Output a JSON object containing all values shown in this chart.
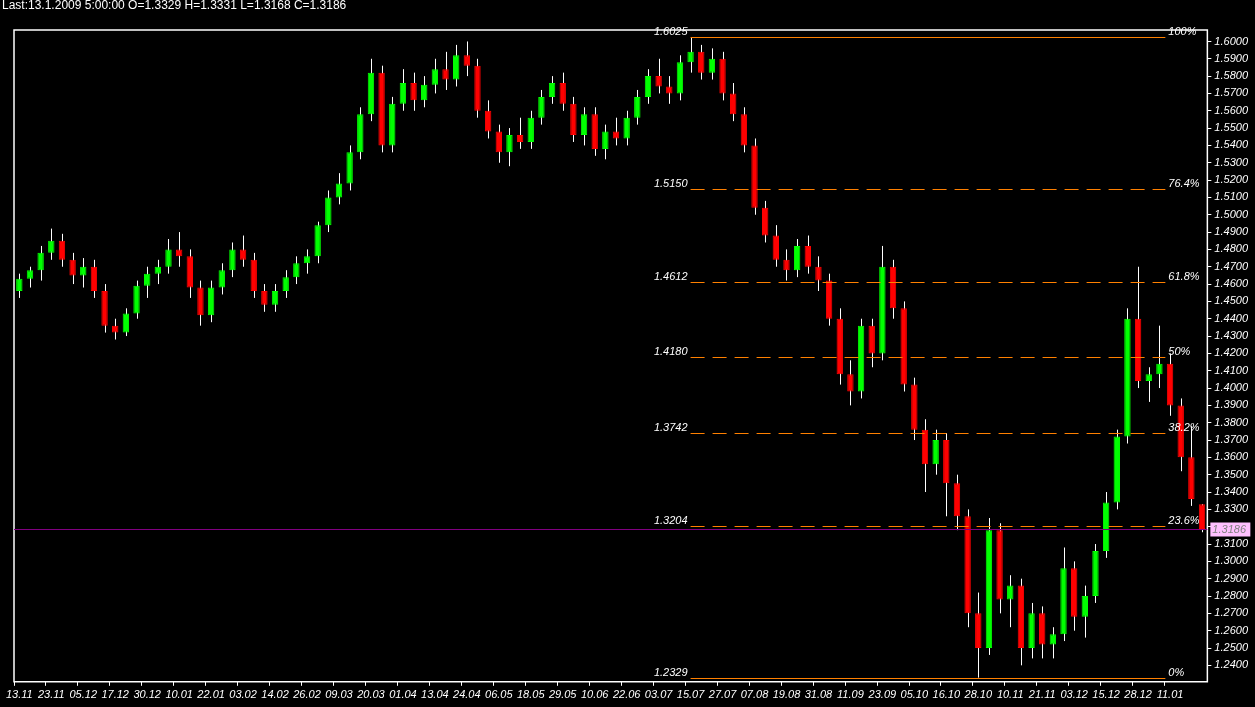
{
  "chart_data": {
    "type": "candlestick",
    "title": "Last:13.1.2009 5:00:00 O=1.3329 H=1.3331 L=1.3168 C=1.3186",
    "categories": [
      "13.11",
      null,
      null,
      "23.11",
      null,
      null,
      "05.12",
      null,
      null,
      "17.12",
      null,
      null,
      "30.12",
      null,
      null,
      "10.01",
      null,
      null,
      "22.01",
      null,
      null,
      "03.02",
      null,
      null,
      "14.02",
      null,
      null,
      "26.02",
      null,
      null,
      "09.03",
      null,
      null,
      "20.03",
      null,
      null,
      "01.04",
      null,
      null,
      "13.04",
      null,
      null,
      "24.04",
      null,
      null,
      "06.05",
      null,
      null,
      "18.05",
      null,
      null,
      "29.05",
      null,
      null,
      "10.06",
      null,
      null,
      "22.06",
      null,
      null,
      "03.07",
      null,
      null,
      "15.07",
      null,
      null,
      "27.07",
      null,
      null,
      "07.08",
      null,
      null,
      "19.08",
      null,
      null,
      "31.08",
      null,
      null,
      "11.09",
      null,
      null,
      "23.09",
      null,
      null,
      "05.10",
      null,
      null,
      "16.10",
      null,
      null,
      "28.10",
      null,
      null,
      "10.11",
      null,
      null,
      "21.11",
      null,
      null,
      "03.12",
      null,
      null,
      "15.12",
      null,
      null,
      "28.12",
      null,
      null,
      "11.01",
      null,
      null,
      null
    ],
    "ohlc": [
      [
        1.456,
        1.466,
        1.452,
        1.463
      ],
      [
        1.463,
        1.47,
        1.458,
        1.468
      ],
      [
        1.468,
        1.482,
        1.462,
        1.478
      ],
      [
        1.478,
        1.492,
        1.474,
        1.485
      ],
      [
        1.485,
        1.489,
        1.47,
        1.474
      ],
      [
        1.474,
        1.478,
        1.46,
        1.465
      ],
      [
        1.465,
        1.475,
        1.458,
        1.47
      ],
      [
        1.47,
        1.474,
        1.452,
        1.456
      ],
      [
        1.456,
        1.46,
        1.432,
        1.436
      ],
      [
        1.436,
        1.44,
        1.428,
        1.432
      ],
      [
        1.432,
        1.446,
        1.43,
        1.443
      ],
      [
        1.443,
        1.462,
        1.44,
        1.459
      ],
      [
        1.459,
        1.47,
        1.452,
        1.466
      ],
      [
        1.466,
        1.474,
        1.46,
        1.47
      ],
      [
        1.47,
        1.486,
        1.466,
        1.48
      ],
      [
        1.48,
        1.49,
        1.47,
        1.476
      ],
      [
        1.476,
        1.48,
        1.452,
        1.458
      ],
      [
        1.458,
        1.462,
        1.436,
        1.442
      ],
      [
        1.442,
        1.462,
        1.438,
        1.458
      ],
      [
        1.458,
        1.472,
        1.454,
        1.468
      ],
      [
        1.468,
        1.484,
        1.464,
        1.48
      ],
      [
        1.48,
        1.488,
        1.47,
        1.474
      ],
      [
        1.474,
        1.478,
        1.452,
        1.456
      ],
      [
        1.456,
        1.46,
        1.444,
        1.448
      ],
      [
        1.448,
        1.46,
        1.444,
        1.456
      ],
      [
        1.456,
        1.468,
        1.452,
        1.464
      ],
      [
        1.464,
        1.476,
        1.46,
        1.472
      ],
      [
        1.472,
        1.48,
        1.466,
        1.476
      ],
      [
        1.476,
        1.496,
        1.472,
        1.494
      ],
      [
        1.494,
        1.514,
        1.49,
        1.51
      ],
      [
        1.51,
        1.524,
        1.506,
        1.518
      ],
      [
        1.518,
        1.54,
        1.514,
        1.536
      ],
      [
        1.536,
        1.562,
        1.532,
        1.558
      ],
      [
        1.558,
        1.59,
        1.554,
        1.582
      ],
      [
        1.582,
        1.586,
        1.536,
        1.54
      ],
      [
        1.54,
        1.568,
        1.536,
        1.564
      ],
      [
        1.564,
        1.584,
        1.56,
        1.576
      ],
      [
        1.576,
        1.582,
        1.56,
        1.566
      ],
      [
        1.566,
        1.58,
        1.562,
        1.575
      ],
      [
        1.575,
        1.59,
        1.57,
        1.584
      ],
      [
        1.584,
        1.594,
        1.572,
        1.578
      ],
      [
        1.578,
        1.598,
        1.574,
        1.592
      ],
      [
        1.592,
        1.6,
        1.58,
        1.586
      ],
      [
        1.586,
        1.59,
        1.556,
        1.56
      ],
      [
        1.56,
        1.566,
        1.544,
        1.548
      ],
      [
        1.548,
        1.552,
        1.53,
        1.536
      ],
      [
        1.536,
        1.55,
        1.528,
        1.546
      ],
      [
        1.546,
        1.556,
        1.538,
        1.542
      ],
      [
        1.542,
        1.56,
        1.538,
        1.556
      ],
      [
        1.556,
        1.572,
        1.552,
        1.568
      ],
      [
        1.568,
        1.58,
        1.564,
        1.576
      ],
      [
        1.576,
        1.582,
        1.56,
        1.564
      ],
      [
        1.564,
        1.568,
        1.542,
        1.546
      ],
      [
        1.546,
        1.562,
        1.54,
        1.558
      ],
      [
        1.558,
        1.562,
        1.534,
        1.538
      ],
      [
        1.538,
        1.552,
        1.532,
        1.548
      ],
      [
        1.548,
        1.556,
        1.54,
        1.544
      ],
      [
        1.544,
        1.56,
        1.54,
        1.556
      ],
      [
        1.556,
        1.572,
        1.552,
        1.568
      ],
      [
        1.568,
        1.584,
        1.564,
        1.58
      ],
      [
        1.58,
        1.59,
        1.57,
        1.574
      ],
      [
        1.574,
        1.58,
        1.564,
        1.57
      ],
      [
        1.57,
        1.592,
        1.566,
        1.588
      ],
      [
        1.588,
        1.6025,
        1.582,
        1.594
      ],
      [
        1.594,
        1.598,
        1.578,
        1.582
      ],
      [
        1.582,
        1.596,
        1.578,
        1.59
      ],
      [
        1.59,
        1.594,
        1.566,
        1.57
      ],
      [
        1.57,
        1.576,
        1.554,
        1.558
      ],
      [
        1.558,
        1.562,
        1.536,
        1.54
      ],
      [
        1.54,
        1.544,
        1.5,
        1.504
      ],
      [
        1.504,
        1.508,
        1.484,
        1.488
      ],
      [
        1.488,
        1.494,
        1.47,
        1.474
      ],
      [
        1.474,
        1.48,
        1.462,
        1.468
      ],
      [
        1.468,
        1.486,
        1.464,
        1.482
      ],
      [
        1.482,
        1.488,
        1.466,
        1.47
      ],
      [
        1.47,
        1.476,
        1.456,
        1.462
      ],
      [
        1.462,
        1.466,
        1.436,
        1.44
      ],
      [
        1.44,
        1.446,
        1.402,
        1.408
      ],
      [
        1.408,
        1.416,
        1.39,
        1.398
      ],
      [
        1.398,
        1.44,
        1.394,
        1.436
      ],
      [
        1.436,
        1.44,
        1.412,
        1.42
      ],
      [
        1.42,
        1.482,
        1.416,
        1.47
      ],
      [
        1.47,
        1.474,
        1.44,
        1.446
      ],
      [
        1.446,
        1.45,
        1.398,
        1.402
      ],
      [
        1.402,
        1.406,
        1.37,
        1.376
      ],
      [
        1.376,
        1.382,
        1.34,
        1.356
      ],
      [
        1.356,
        1.376,
        1.35,
        1.37
      ],
      [
        1.37,
        1.374,
        1.326,
        1.345
      ],
      [
        1.345,
        1.35,
        1.318,
        1.326
      ],
      [
        1.326,
        1.33,
        1.262,
        1.27
      ],
      [
        1.27,
        1.282,
        1.2329,
        1.25
      ],
      [
        1.25,
        1.325,
        1.246,
        1.318
      ],
      [
        1.318,
        1.322,
        1.27,
        1.278
      ],
      [
        1.278,
        1.292,
        1.262,
        1.286
      ],
      [
        1.286,
        1.29,
        1.24,
        1.25
      ],
      [
        1.25,
        1.276,
        1.244,
        1.27
      ],
      [
        1.27,
        1.274,
        1.244,
        1.252
      ],
      [
        1.252,
        1.262,
        1.244,
        1.258
      ],
      [
        1.258,
        1.308,
        1.254,
        1.296
      ],
      [
        1.296,
        1.3,
        1.26,
        1.268
      ],
      [
        1.268,
        1.286,
        1.256,
        1.28
      ],
      [
        1.28,
        1.31,
        1.276,
        1.306
      ],
      [
        1.306,
        1.34,
        1.302,
        1.334
      ],
      [
        1.334,
        1.376,
        1.33,
        1.372
      ],
      [
        1.372,
        1.446,
        1.368,
        1.44
      ],
      [
        1.44,
        1.47,
        1.4,
        1.404
      ],
      [
        1.404,
        1.412,
        1.392,
        1.408
      ],
      [
        1.408,
        1.436,
        1.4,
        1.414
      ],
      [
        1.414,
        1.42,
        1.384,
        1.39
      ],
      [
        1.39,
        1.394,
        1.352,
        1.36
      ],
      [
        1.36,
        1.378,
        1.332,
        1.336
      ],
      [
        1.3329,
        1.3331,
        1.3168,
        1.3186
      ]
    ],
    "colors": [
      "#00ff00",
      "#00ff00",
      "#00ff00",
      "#00ff00",
      "#ff0000",
      "#ff0000",
      "#00ff00",
      "#ff0000",
      "#ff0000",
      "#ff0000",
      "#00ff00",
      "#00ff00",
      "#00ff00",
      "#00ff00",
      "#00ff00",
      "#ff0000",
      "#ff0000",
      "#ff0000",
      "#00ff00",
      "#00ff00",
      "#00ff00",
      "#ff0000",
      "#ff0000",
      "#ff0000",
      "#00ff00",
      "#00ff00",
      "#00ff00",
      "#00ff00",
      "#00ff00",
      "#00ff00",
      "#00ff00",
      "#00ff00",
      "#00ff00",
      "#00ff00",
      "#ff0000",
      "#00ff00",
      "#00ff00",
      "#ff0000",
      "#00ff00",
      "#00ff00",
      "#ff0000",
      "#00ff00",
      "#ff0000",
      "#ff0000",
      "#ff0000",
      "#ff0000",
      "#00ff00",
      "#ff0000",
      "#00ff00",
      "#00ff00",
      "#00ff00",
      "#ff0000",
      "#ff0000",
      "#00ff00",
      "#ff0000",
      "#00ff00",
      "#ff0000",
      "#00ff00",
      "#00ff00",
      "#00ff00",
      "#ff0000",
      "#ff0000",
      "#00ff00",
      "#00ff00",
      "#ff0000",
      "#00ff00",
      "#ff0000",
      "#ff0000",
      "#ff0000",
      "#ff0000",
      "#ff0000",
      "#ff0000",
      "#ff0000",
      "#00ff00",
      "#ff0000",
      "#ff0000",
      "#ff0000",
      "#ff0000",
      "#ff0000",
      "#00ff00",
      "#ff0000",
      "#00ff00",
      "#ff0000",
      "#ff0000",
      "#ff0000",
      "#ff0000",
      "#00ff00",
      "#ff0000",
      "#ff0000",
      "#ff0000",
      "#ff0000",
      "#00ff00",
      "#ff0000",
      "#00ff00",
      "#ff0000",
      "#00ff00",
      "#ff0000",
      "#00ff00",
      "#00ff00",
      "#ff0000",
      "#00ff00",
      "#00ff00",
      "#00ff00",
      "#00ff00",
      "#00ff00",
      "#ff0000",
      "#00ff00",
      "#00ff00",
      "#ff0000",
      "#ff0000",
      "#ff0000",
      "#ff0000"
    ],
    "ylim": [
      1.2305,
      1.6066
    ],
    "yticks": [
      {
        "value": 1.24,
        "label": "1.2400"
      },
      {
        "value": 1.25,
        "label": "1.2500"
      },
      {
        "value": 1.26,
        "label": "1.2600"
      },
      {
        "value": 1.27,
        "label": "1.2700"
      },
      {
        "value": 1.28,
        "label": "1.2800"
      },
      {
        "value": 1.29,
        "label": "1.2900"
      },
      {
        "value": 1.3,
        "label": "1.3000"
      },
      {
        "value": 1.31,
        "label": "1.3100"
      },
      {
        "value": 1.32,
        "label": null
      },
      {
        "value": 1.33,
        "label": "1.3300"
      },
      {
        "value": 1.34,
        "label": "1.3400"
      },
      {
        "value": 1.35,
        "label": "1.3500"
      },
      {
        "value": 1.36,
        "label": "1.3600"
      },
      {
        "value": 1.37,
        "label": "1.3700"
      },
      {
        "value": 1.38,
        "label": "1.3800"
      },
      {
        "value": 1.39,
        "label": "1.3900"
      },
      {
        "value": 1.4,
        "label": "1.4000"
      },
      {
        "value": 1.41,
        "label": "1.4100"
      },
      {
        "value": 1.42,
        "label": "1.4200"
      },
      {
        "value": 1.43,
        "label": "1.4300"
      },
      {
        "value": 1.44,
        "label": "1.4400"
      },
      {
        "value": 1.45,
        "label": "1.4500"
      },
      {
        "value": 1.46,
        "label": "1.4600"
      },
      {
        "value": 1.47,
        "label": "1.4700"
      },
      {
        "value": 1.48,
        "label": "1.4800"
      },
      {
        "value": 1.49,
        "label": "1.4900"
      },
      {
        "value": 1.5,
        "label": "1.5000"
      },
      {
        "value": 1.51,
        "label": "1.5100"
      },
      {
        "value": 1.52,
        "label": "1.5200"
      },
      {
        "value": 1.53,
        "label": "1.5300"
      },
      {
        "value": 1.54,
        "label": "1.5400"
      },
      {
        "value": 1.55,
        "label": "1.5500"
      },
      {
        "value": 1.56,
        "label": "1.5600"
      },
      {
        "value": 1.57,
        "label": "1.5700"
      },
      {
        "value": 1.58,
        "label": "1.5800"
      },
      {
        "value": 1.59,
        "label": "1.5900"
      },
      {
        "value": 1.6,
        "label": "1.6000"
      }
    ],
    "ref_lines": [
      {
        "axis": "y",
        "value": 1.6025,
        "label": "1.6025",
        "color": "#ff8000",
        "line_style": "solid"
      },
      {
        "axis": "y",
        "value": 1.515,
        "label": "1.5150",
        "color": "#ff8000",
        "line_style": "dashed"
      },
      {
        "axis": "y",
        "value": 1.4612,
        "label": "1.4612",
        "color": "#ff8000",
        "line_style": "dashed"
      },
      {
        "axis": "y",
        "value": 1.418,
        "label": "1.4180",
        "color": "#ff8000",
        "line_style": "dashed"
      },
      {
        "axis": "y",
        "value": 1.3742,
        "label": "1.3742",
        "color": "#ff8000",
        "line_style": "dashed"
      },
      {
        "axis": "y",
        "value": 1.3204,
        "label": "1.3204",
        "color": "#ff8000",
        "line_style": "dashed"
      },
      {
        "axis": "y",
        "value": 1.2329,
        "label": "1.2329",
        "color": "#ff8000",
        "line_style": "solid"
      },
      {
        "axis": "y",
        "value": 1.3186,
        "label": "1.3186",
        "color": "#800080",
        "line_style": "solid"
      }
    ],
    "annotations": [
      "100%",
      "76.4%",
      "61.8%",
      "50%",
      "38.2%",
      "23.6%",
      "0%"
    ]
  }
}
